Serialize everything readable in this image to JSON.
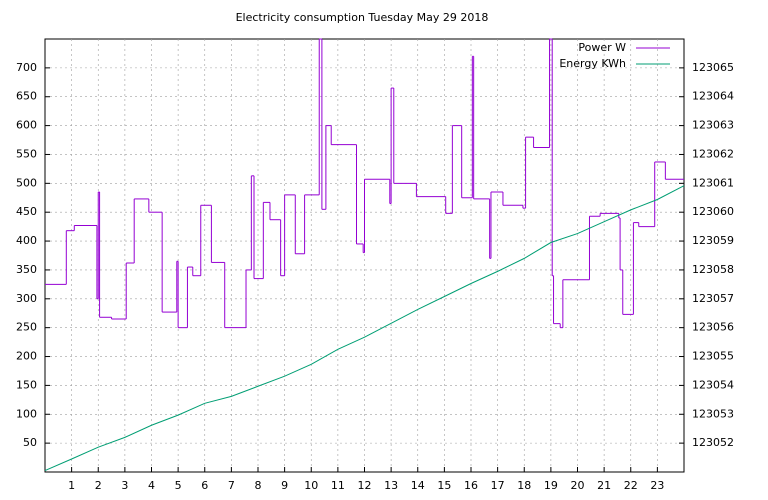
{
  "chart_data": {
    "type": "line",
    "title": "Electricity consumption Tuesday May 29 2018",
    "xlim": [
      0,
      24
    ],
    "xticks": [
      1,
      2,
      3,
      4,
      5,
      6,
      7,
      8,
      9,
      10,
      11,
      12,
      13,
      14,
      15,
      16,
      17,
      18,
      19,
      20,
      21,
      22,
      23
    ],
    "ylim": [
      0,
      750
    ],
    "yticks": [
      50,
      100,
      150,
      200,
      250,
      300,
      350,
      400,
      450,
      500,
      550,
      600,
      650,
      700
    ],
    "y2lim": [
      123051,
      123066
    ],
    "y2ticks": [
      123052,
      123053,
      123054,
      123055,
      123056,
      123057,
      123058,
      123059,
      123060,
      123061,
      123062,
      123063,
      123064,
      123065
    ],
    "grid": true,
    "legend": "top-right",
    "series": [
      {
        "name": "Power W",
        "color": "#9400d3",
        "step": true,
        "x": [
          0,
          0.8,
          1.1,
          1.95,
          2.0,
          2.05,
          2.5,
          3.05,
          3.35,
          3.9,
          4.4,
          4.95,
          5.0,
          5.35,
          5.55,
          5.85,
          6.25,
          6.75,
          7.55,
          7.75,
          7.85,
          8.2,
          8.45,
          8.85,
          9.0,
          9.4,
          9.75,
          10.3,
          10.4,
          10.55,
          10.75,
          11.7,
          11.95,
          12.0,
          12.95,
          13.0,
          13.1,
          13.95,
          15.05,
          15.3,
          15.65,
          16.05,
          16.1,
          16.7,
          16.75,
          17.2,
          17.95,
          18.05,
          18.35,
          18.95,
          19.05,
          19.1,
          19.35,
          19.45,
          20.45,
          20.85,
          21.55,
          21.6,
          21.7,
          22.1,
          22.3,
          22.9,
          23.3
        ],
        "values": [
          325,
          418,
          427,
          300,
          485,
          268,
          265,
          362,
          473,
          450,
          277,
          365,
          250,
          355,
          340,
          462,
          363,
          250,
          350,
          513,
          335,
          467,
          437,
          340,
          480,
          378,
          480,
          750,
          455,
          600,
          567,
          395,
          380,
          507,
          465,
          665,
          500,
          477,
          448,
          600,
          475,
          720,
          473,
          370,
          485,
          462,
          457,
          580,
          562,
          750,
          340,
          257,
          250,
          333,
          443,
          448,
          440,
          350,
          273,
          432,
          425,
          537,
          507
        ]
      },
      {
        "name": "Energy KWh",
        "color": "#009e73",
        "axis": "y2",
        "x": [
          0,
          1,
          2,
          3,
          4,
          5,
          6,
          7,
          8,
          9,
          10,
          11,
          12,
          13,
          14,
          15,
          16,
          17,
          18,
          19,
          20,
          21,
          22,
          23,
          24
        ],
        "values": [
          123051.05,
          123051.45,
          123051.86,
          123052.2,
          123052.62,
          123052.97,
          123053.38,
          123053.62,
          123053.97,
          123054.32,
          123054.73,
          123055.25,
          123055.67,
          123056.15,
          123056.63,
          123057.08,
          123057.53,
          123057.95,
          123058.4,
          123058.95,
          123059.26,
          123059.67,
          123060.08,
          123060.44,
          123060.92
        ]
      }
    ]
  }
}
